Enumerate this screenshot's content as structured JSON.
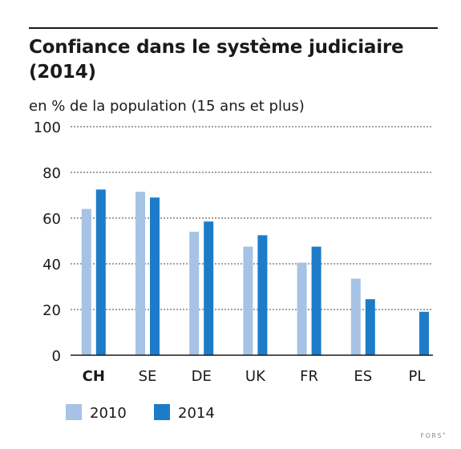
{
  "chart_data": {
    "type": "bar",
    "title": "Confiance dans le système judiciaire (2014)",
    "subtitle": "en % de la population (15 ans et plus)",
    "xlabel": "",
    "ylabel": "",
    "ylim": [
      0,
      100
    ],
    "yticks": [
      0,
      20,
      40,
      60,
      80,
      100
    ],
    "grid": true,
    "legend_position": "bottom-left",
    "categories": [
      "CH",
      "SE",
      "DE",
      "UK",
      "FR",
      "ES",
      "PL"
    ],
    "highlight_category": "CH",
    "series": [
      {
        "name": "2010",
        "color": "#a6c3e6",
        "values": [
          64,
          71.5,
          54,
          47.5,
          40.5,
          33.5,
          null
        ]
      },
      {
        "name": "2014",
        "color": "#1d7cc9",
        "values": [
          72.5,
          69,
          58.5,
          52.5,
          47.5,
          24.5,
          19
        ]
      }
    ]
  },
  "logo_text": "FORS",
  "logo_dot": "°"
}
